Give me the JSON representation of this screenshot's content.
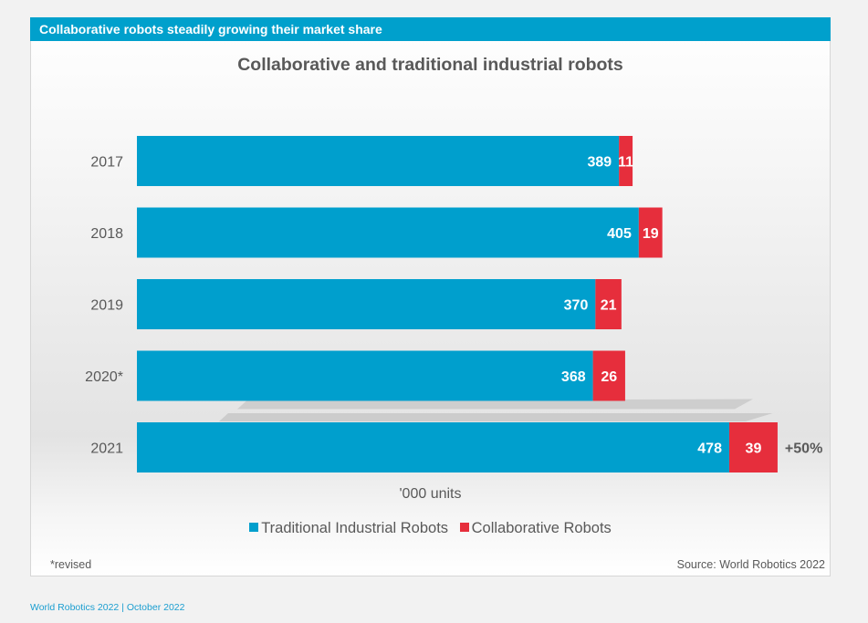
{
  "header": {
    "banner": "Collaborative robots steadily growing their market share"
  },
  "colors": {
    "traditional": "#009fcd",
    "collaborative": "#e62e3c",
    "text": "#595959",
    "footer": "#1b9ed0"
  },
  "chart_data": {
    "type": "bar",
    "orientation": "horizontal",
    "stacked": true,
    "title": "Collaborative and traditional industrial robots",
    "xlabel": "'000 units",
    "ylabel": "",
    "categories": [
      "2017",
      "2018",
      "2019",
      "2020*",
      "2021"
    ],
    "series": [
      {
        "name": "Traditional Industrial Robots",
        "values": [
          389,
          405,
          370,
          368,
          478
        ]
      },
      {
        "name": "Collaborative Robots",
        "values": [
          11,
          19,
          21,
          26,
          39
        ]
      }
    ],
    "annotations": [
      {
        "category": "2021",
        "text": "+50%"
      }
    ],
    "xlim": [
      0,
      540
    ],
    "grid": false,
    "legend": "bottom"
  },
  "legend": {
    "items": [
      "Traditional Industrial Robots",
      "Collaborative Robots"
    ]
  },
  "notes": {
    "revised": "*revised",
    "source": "Source: World Robotics 2022"
  },
  "footer": {
    "text": "World Robotics 2022  | October 2022"
  }
}
